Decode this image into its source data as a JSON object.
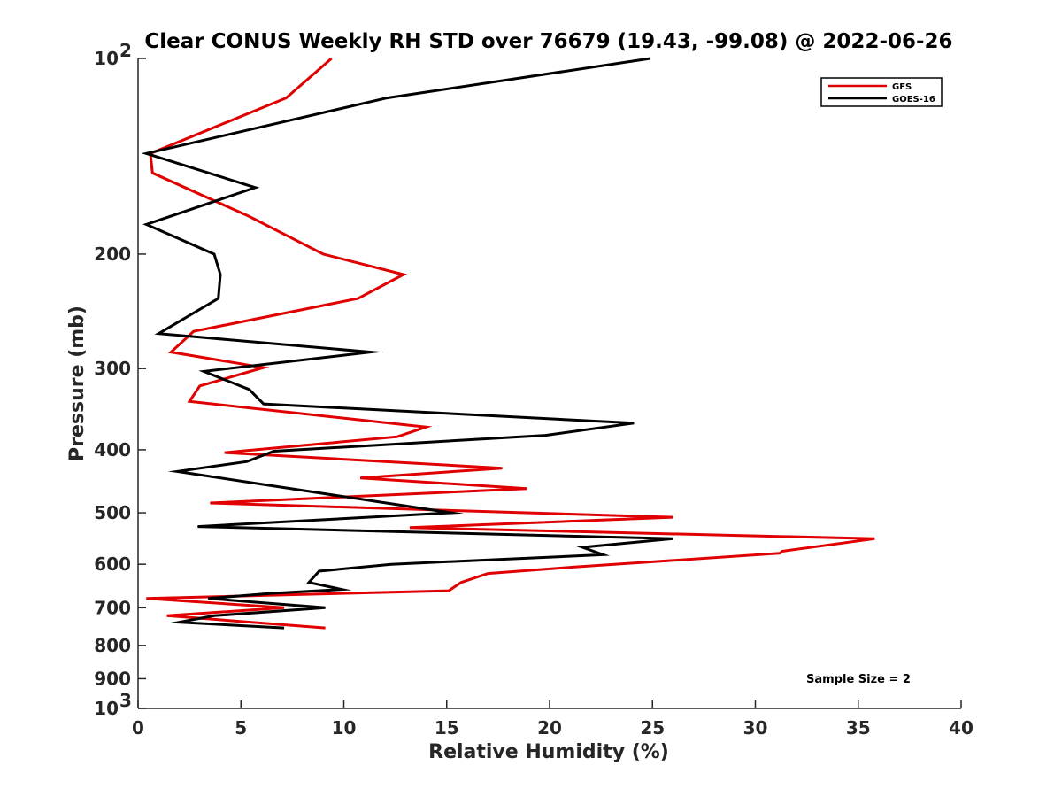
{
  "chart_data": {
    "type": "line",
    "title": "Clear CONUS Weekly RH STD over 76679 (19.43, -99.08) @ 2022-06-26",
    "xlabel": "Relative Humidity (%)",
    "ylabel": "Pressure (mb)",
    "xlim": [
      0,
      40
    ],
    "ylim": [
      100,
      1000
    ],
    "y_scale": "log",
    "y_reversed": true,
    "grid": false,
    "legend_position": "top-right",
    "x_ticks": [
      0,
      5,
      10,
      15,
      20,
      25,
      30,
      35,
      40
    ],
    "y_ticks": [
      {
        "value": 100,
        "base": "10",
        "exp": "2"
      },
      {
        "value": 200,
        "label": "200"
      },
      {
        "value": 300,
        "label": "300"
      },
      {
        "value": 400,
        "label": "400"
      },
      {
        "value": 500,
        "label": "500"
      },
      {
        "value": 600,
        "label": "600"
      },
      {
        "value": 700,
        "label": "700"
      },
      {
        "value": 800,
        "label": "800"
      },
      {
        "value": 900,
        "label": "900"
      },
      {
        "value": 1000,
        "base": "10",
        "exp": "3"
      }
    ],
    "annotation": "Sample Size = 2",
    "series": [
      {
        "name": "GFS",
        "color": "#e00000",
        "points": [
          [
            9.4,
            100
          ],
          [
            7.2,
            115
          ],
          [
            0.6,
            140
          ],
          [
            0.7,
            150
          ],
          [
            5.4,
            175
          ],
          [
            9.0,
            200
          ],
          [
            12.9,
            215
          ],
          [
            10.7,
            234
          ],
          [
            2.7,
            263
          ],
          [
            1.6,
            283
          ],
          [
            6.1,
            299
          ],
          [
            3.0,
            319
          ],
          [
            2.5,
            337
          ],
          [
            14.0,
            369
          ],
          [
            12.6,
            382
          ],
          [
            4.2,
            404
          ],
          [
            17.7,
            427
          ],
          [
            10.8,
            442
          ],
          [
            18.9,
            459
          ],
          [
            3.5,
            483
          ],
          [
            26.0,
            508
          ],
          [
            13.2,
            527
          ],
          [
            35.8,
            548
          ],
          [
            31.3,
            573
          ],
          [
            31.2,
            577
          ],
          [
            21.2,
            606
          ],
          [
            17.0,
            620
          ],
          [
            15.7,
            640
          ],
          [
            15.1,
            659
          ],
          [
            0.4,
            677
          ],
          [
            7.1,
            700
          ],
          [
            1.4,
            720
          ],
          [
            9.1,
            752
          ]
        ]
      },
      {
        "name": "GOES-16",
        "color": "#000000",
        "points": [
          [
            24.9,
            100
          ],
          [
            12.1,
            115
          ],
          [
            0.4,
            140
          ],
          [
            5.7,
            158
          ],
          [
            0.4,
            180
          ],
          [
            3.7,
            200
          ],
          [
            4.0,
            215
          ],
          [
            3.9,
            234
          ],
          [
            1.0,
            265
          ],
          [
            11.3,
            283
          ],
          [
            3.2,
            303
          ],
          [
            5.4,
            323
          ],
          [
            6.1,
            340
          ],
          [
            24.1,
            364
          ],
          [
            19.8,
            380
          ],
          [
            6.6,
            402
          ],
          [
            5.3,
            417
          ],
          [
            1.9,
            432
          ],
          [
            15.2,
            500
          ],
          [
            2.9,
            525
          ],
          [
            26.0,
            548
          ],
          [
            21.6,
            565
          ],
          [
            22.6,
            580
          ],
          [
            12.3,
            600
          ],
          [
            8.8,
            615
          ],
          [
            8.3,
            640
          ],
          [
            9.9,
            656
          ],
          [
            6.5,
            665
          ],
          [
            3.4,
            677
          ],
          [
            9.1,
            700
          ],
          [
            3.7,
            720
          ],
          [
            2.0,
            737
          ],
          [
            7.1,
            752
          ]
        ]
      }
    ]
  }
}
